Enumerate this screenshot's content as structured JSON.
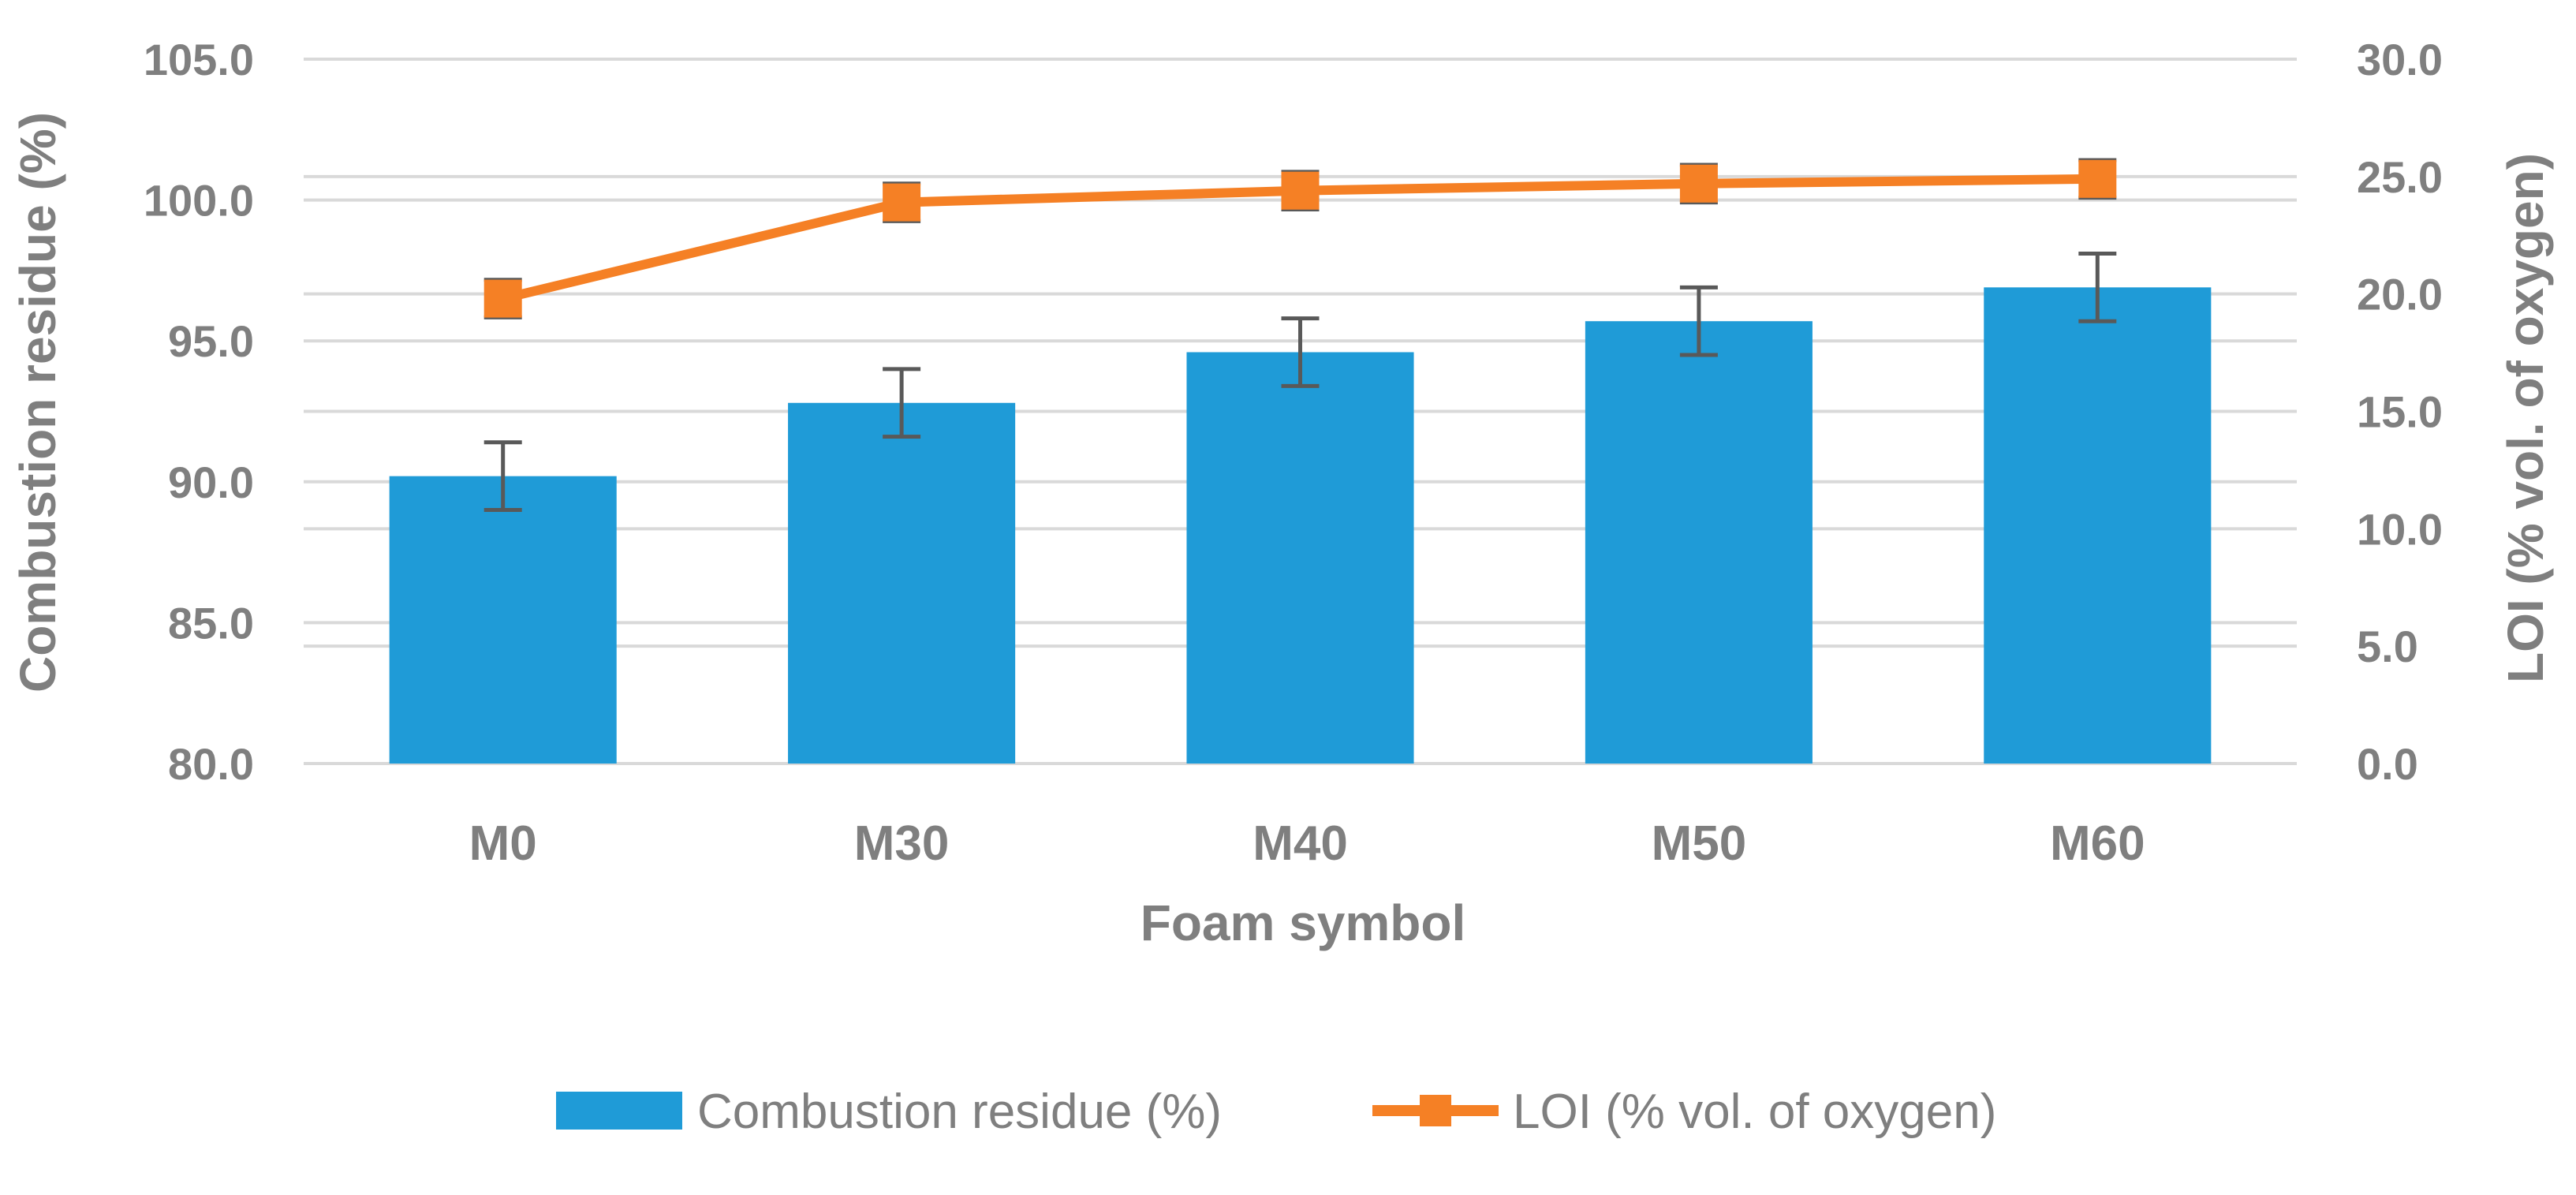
{
  "chart_data": {
    "type": "bar",
    "categories": [
      "M0",
      "M30",
      "M40",
      "M50",
      "M60"
    ],
    "series": [
      {
        "name": "Combustion residue (%)",
        "type": "bar",
        "axis": "left",
        "values": [
          90.2,
          92.8,
          94.6,
          95.7,
          96.9
        ],
        "error": [
          1.2,
          1.2,
          1.2,
          1.2,
          1.2
        ],
        "color": "#1F9BD7"
      },
      {
        "name": "LOI (% vol. of oxygen)",
        "type": "line",
        "axis": "right",
        "marker": "square",
        "values": [
          19.8,
          23.9,
          24.4,
          24.7,
          24.9
        ],
        "error": [
          0.8,
          0.8,
          0.8,
          0.8,
          0.8
        ],
        "color": "#F58025"
      }
    ],
    "xlabel": "Foam symbol",
    "ylabel": "Combustion residue (%)",
    "y2label": "LOI (% vol. of oxygen)",
    "ylim": [
      80,
      105
    ],
    "y2lim": [
      0,
      30
    ],
    "yticks": [
      "80.0",
      "85.0",
      "90.0",
      "95.0",
      "100.0",
      "105.0"
    ],
    "y2ticks": [
      "0.0",
      "5.0",
      "10.0",
      "15.0",
      "20.0",
      "25.0",
      "30.0"
    ],
    "grid": true,
    "legend_position": "bottom",
    "error_bar_color": "#595959",
    "grid_color": "#d9d9d9",
    "text_color": "#7f7f7f"
  }
}
